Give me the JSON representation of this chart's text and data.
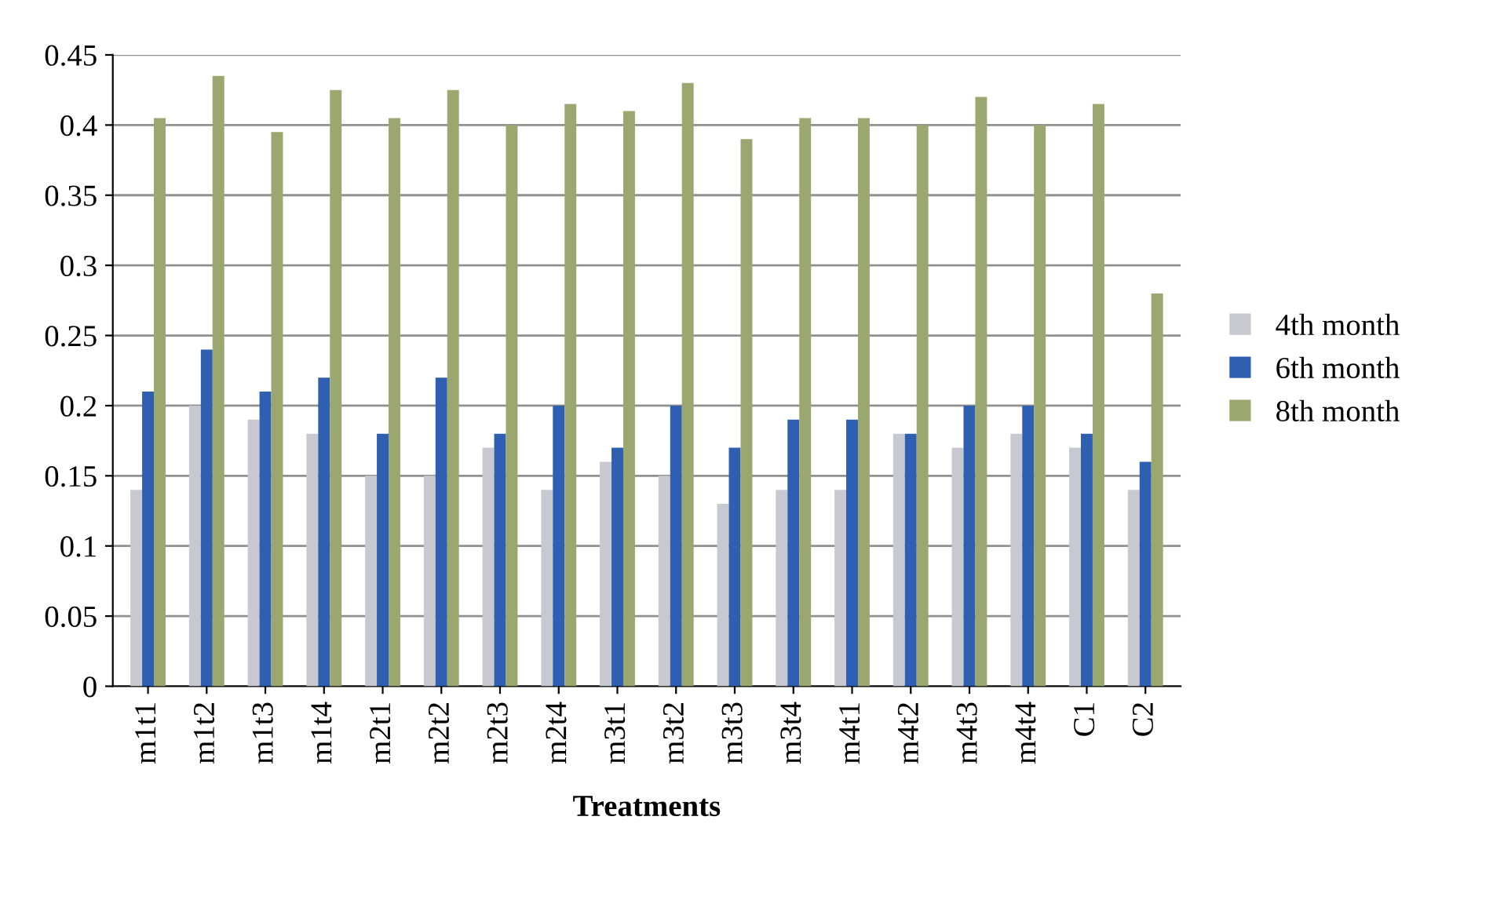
{
  "chart_data": {
    "type": "bar",
    "xlabel": "Treatments",
    "categories": [
      "m1t1",
      "m1t2",
      "m1t3",
      "m1t4",
      "m2t1",
      "m2t2",
      "m2t3",
      "m2t4",
      "m3t1",
      "m3t2",
      "m3t3",
      "m3t4",
      "m4t1",
      "m4t2",
      "m4t3",
      "m4t4",
      "C1",
      "C2"
    ],
    "series": [
      {
        "name": "4th month",
        "color": "#c8c8d0",
        "values": [
          0.14,
          0.2,
          0.19,
          0.18,
          0.15,
          0.15,
          0.17,
          0.14,
          0.16,
          0.15,
          0.13,
          0.14,
          0.14,
          0.18,
          0.17,
          0.18,
          0.17,
          0.14
        ]
      },
      {
        "name": "6th month",
        "color": "#2f5fb0",
        "values": [
          0.21,
          0.24,
          0.21,
          0.22,
          0.18,
          0.22,
          0.18,
          0.2,
          0.17,
          0.2,
          0.17,
          0.19,
          0.19,
          0.18,
          0.2,
          0.2,
          0.18,
          0.16
        ]
      },
      {
        "name": "8th month",
        "color": "#9aa870",
        "values": [
          0.405,
          0.435,
          0.395,
          0.425,
          0.405,
          0.425,
          0.4,
          0.415,
          0.41,
          0.43,
          0.39,
          0.405,
          0.405,
          0.4,
          0.42,
          0.4,
          0.415,
          0.28
        ]
      }
    ],
    "ylim": [
      0,
      0.45
    ],
    "yticks": [
      0,
      {
        "value": 0.05,
        "label": "0.05"
      },
      {
        "value": 0.1,
        "label": "0.1"
      },
      {
        "value": 0.15,
        "label": "0.15"
      },
      {
        "value": 0.2,
        "label": "0.2"
      },
      {
        "value": 0.25,
        "label": "0.25"
      },
      {
        "value": 0.3,
        "label": "0.3"
      },
      {
        "value": 0.35,
        "label": "0.35"
      },
      {
        "value": 0.4,
        "label": "0.4"
      },
      {
        "value": 0.45,
        "label": "0.45"
      }
    ],
    "grid": "y",
    "legend": "right"
  }
}
